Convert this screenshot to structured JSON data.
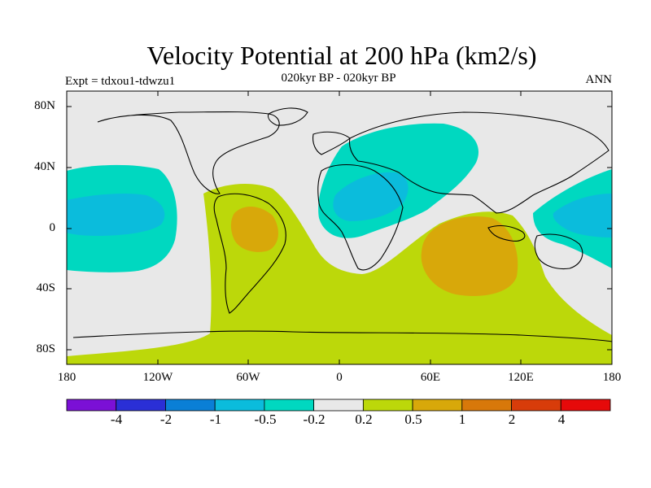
{
  "title": "Velocity Potential at 200 hPa (km2/s)",
  "subtitle": "020kyr BP - 020kyr BP",
  "experiment": "Expt = tdxou1-tdwzu1",
  "season": "ANN",
  "lat_labels": [
    "80N",
    "40N",
    "0",
    "40S",
    "80S"
  ],
  "lon_labels": [
    "180",
    "120W",
    "60W",
    "0",
    "60E",
    "120E",
    "180"
  ],
  "colorbar": {
    "labels": [
      "-4",
      "-2",
      "-1",
      "-0.5",
      "-0.2",
      "0.2",
      "0.5",
      "1",
      "2",
      "4"
    ],
    "colors": [
      "#7b10d6",
      "#2a2fd6",
      "#0a7fd6",
      "#0bbcdc",
      "#00d8c0",
      "#e8e8e8",
      "#bcd80a",
      "#d8a80a",
      "#d8780a",
      "#d83c0a",
      "#e60a0a"
    ]
  },
  "map": {
    "background_color": "#e8e8e8",
    "positive_low_color": "#bcd80a",
    "positive_mid_color": "#d8a80a",
    "negative_low_color": "#00d8c0",
    "negative_mid_color": "#0bbcdc"
  }
}
